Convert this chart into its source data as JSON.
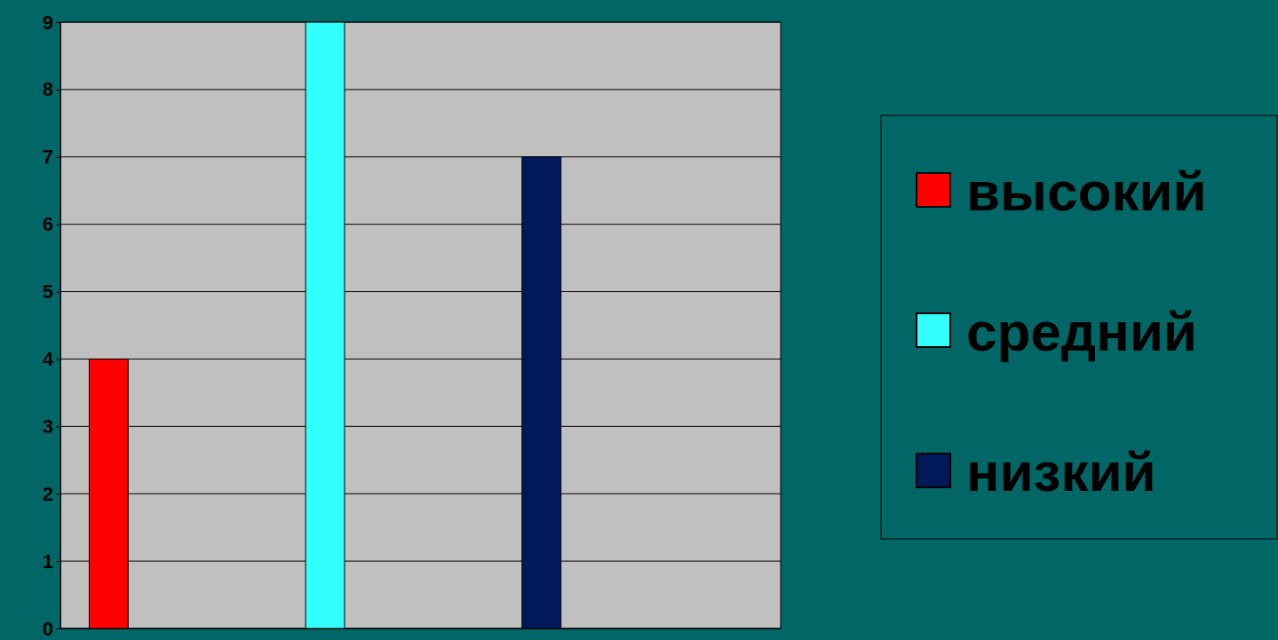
{
  "chart_data": {
    "type": "bar",
    "categories": [
      null
    ],
    "series": [
      {
        "name": "высокий",
        "color": "#ff0000",
        "values": [
          4
        ]
      },
      {
        "name": "средний",
        "color": "#33ffff",
        "values": [
          9
        ]
      },
      {
        "name": "низкий",
        "color": "#001a59",
        "values": [
          7
        ]
      }
    ],
    "ylim": [
      0,
      9
    ],
    "yticks": [
      0,
      1,
      2,
      3,
      4,
      5,
      6,
      7,
      8,
      9
    ],
    "grid": "y",
    "legend": "right"
  }
}
